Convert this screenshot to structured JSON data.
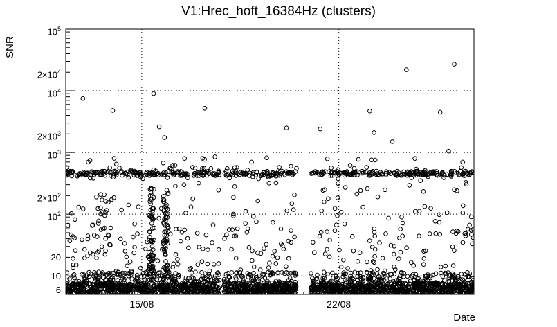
{
  "chart_data": {
    "type": "scatter",
    "title": "V1:Hrec_hoft_16384Hz (clusters)",
    "xlabel": "Date",
    "ylabel": "SNR",
    "marker": {
      "style": "open-circle",
      "color": "#000000",
      "radius_px": 2.8
    },
    "grid": {
      "style": "dotted",
      "color": "#000000"
    },
    "x_axis": {
      "unit": "day-of-august",
      "range_days": [
        12.3,
        26.8
      ],
      "major_ticks": [
        {
          "day": 15,
          "label": "15/08"
        },
        {
          "day": 22,
          "label": "22/08"
        }
      ],
      "minor_tick_step_days": 0.25,
      "day_tick_step_days": 1
    },
    "y_axis": {
      "scale": "log",
      "range": [
        5,
        100000
      ],
      "grid_decades": [
        10,
        100,
        1000,
        10000,
        100000
      ],
      "labeled_ticks": [
        {
          "value": 6,
          "mantissa": "6",
          "exponent": ""
        },
        {
          "value": 10,
          "mantissa": "10",
          "exponent": ""
        },
        {
          "value": 20,
          "mantissa": "20",
          "exponent": ""
        },
        {
          "value": 100,
          "mantissa": "10",
          "exponent": "2"
        },
        {
          "value": 200,
          "mantissa": "2×10",
          "exponent": "2"
        },
        {
          "value": 1000,
          "mantissa": "10",
          "exponent": "3"
        },
        {
          "value": 2000,
          "mantissa": "2×10",
          "exponent": "3"
        },
        {
          "value": 10000,
          "mantissa": "10",
          "exponent": "4"
        },
        {
          "value": 20000,
          "mantissa": "2×10",
          "exponent": "4"
        },
        {
          "value": 100000,
          "mantissa": "10",
          "exponent": "5"
        }
      ]
    },
    "data_gaps_days": [
      [
        20.5,
        21.0
      ],
      [
        17.78,
        17.92
      ]
    ],
    "dense_clusters": [
      {
        "name": "calibration-line",
        "x_days": [
          12.3,
          26.8
        ],
        "snr": [
          420,
          500
        ],
        "count": 420,
        "respect_gaps": true
      },
      {
        "name": "calibration-fuzz",
        "x_days": [
          12.3,
          26.8
        ],
        "snr": [
          370,
          580
        ],
        "count": 70,
        "respect_gaps": true
      },
      {
        "name": "noise-floor",
        "x_days": [
          12.3,
          26.8
        ],
        "snr": [
          5.1,
          7.6
        ],
        "count": 1700,
        "respect_gaps": true
      },
      {
        "name": "noise-floor-upper",
        "x_days": [
          12.3,
          26.8
        ],
        "snr": [
          7.6,
          11.5
        ],
        "count": 430,
        "respect_gaps": true
      },
      {
        "name": "low-scatter",
        "x_days": [
          12.3,
          26.8
        ],
        "snr": [
          11.5,
          60
        ],
        "count": 190,
        "respect_gaps": true
      },
      {
        "name": "mid-scatter",
        "x_days": [
          12.3,
          26.8
        ],
        "snr": [
          60,
          330
        ],
        "count": 80,
        "respect_gaps": true
      },
      {
        "name": "burst-column-a",
        "x_days": [
          15.25,
          15.45
        ],
        "snr": [
          8,
          260
        ],
        "count": 60,
        "respect_gaps": false
      },
      {
        "name": "burst-column-b",
        "x_days": [
          15.75,
          15.95
        ],
        "snr": [
          8,
          230
        ],
        "count": 70,
        "respect_gaps": false
      },
      {
        "name": "cluster-13aug",
        "x_days": [
          13.4,
          14.0
        ],
        "snr": [
          20,
          210
        ],
        "count": 26,
        "respect_gaps": false
      },
      {
        "name": "above-band-strays",
        "x_days": [
          12.3,
          26.8
        ],
        "snr": [
          520,
          850
        ],
        "count": 14,
        "respect_gaps": true
      }
    ],
    "outlier_points_day_snr": [
      [
        12.91,
        7500
      ],
      [
        13.97,
        4800
      ],
      [
        15.42,
        9000
      ],
      [
        15.62,
        2600
      ],
      [
        15.81,
        1750
      ],
      [
        17.24,
        5200
      ],
      [
        20.14,
        2500
      ],
      [
        21.34,
        2400
      ],
      [
        23.1,
        4700
      ],
      [
        23.25,
        2100
      ],
      [
        23.9,
        1500
      ],
      [
        24.4,
        22000
      ],
      [
        25.6,
        4500
      ],
      [
        26.1,
        27000
      ],
      [
        25.9,
        1050
      ],
      [
        26.4,
        700
      ],
      [
        17.6,
        850
      ],
      [
        18.9,
        700
      ],
      [
        14.1,
        650
      ],
      [
        16.1,
        620
      ],
      [
        20.3,
        600
      ],
      [
        24.7,
        800
      ],
      [
        22.4,
        620
      ],
      [
        16.5,
        300
      ],
      [
        18.3,
        280
      ],
      [
        21.5,
        250
      ],
      [
        24.9,
        350
      ],
      [
        26.2,
        240
      ],
      [
        13.1,
        700
      ]
    ]
  }
}
